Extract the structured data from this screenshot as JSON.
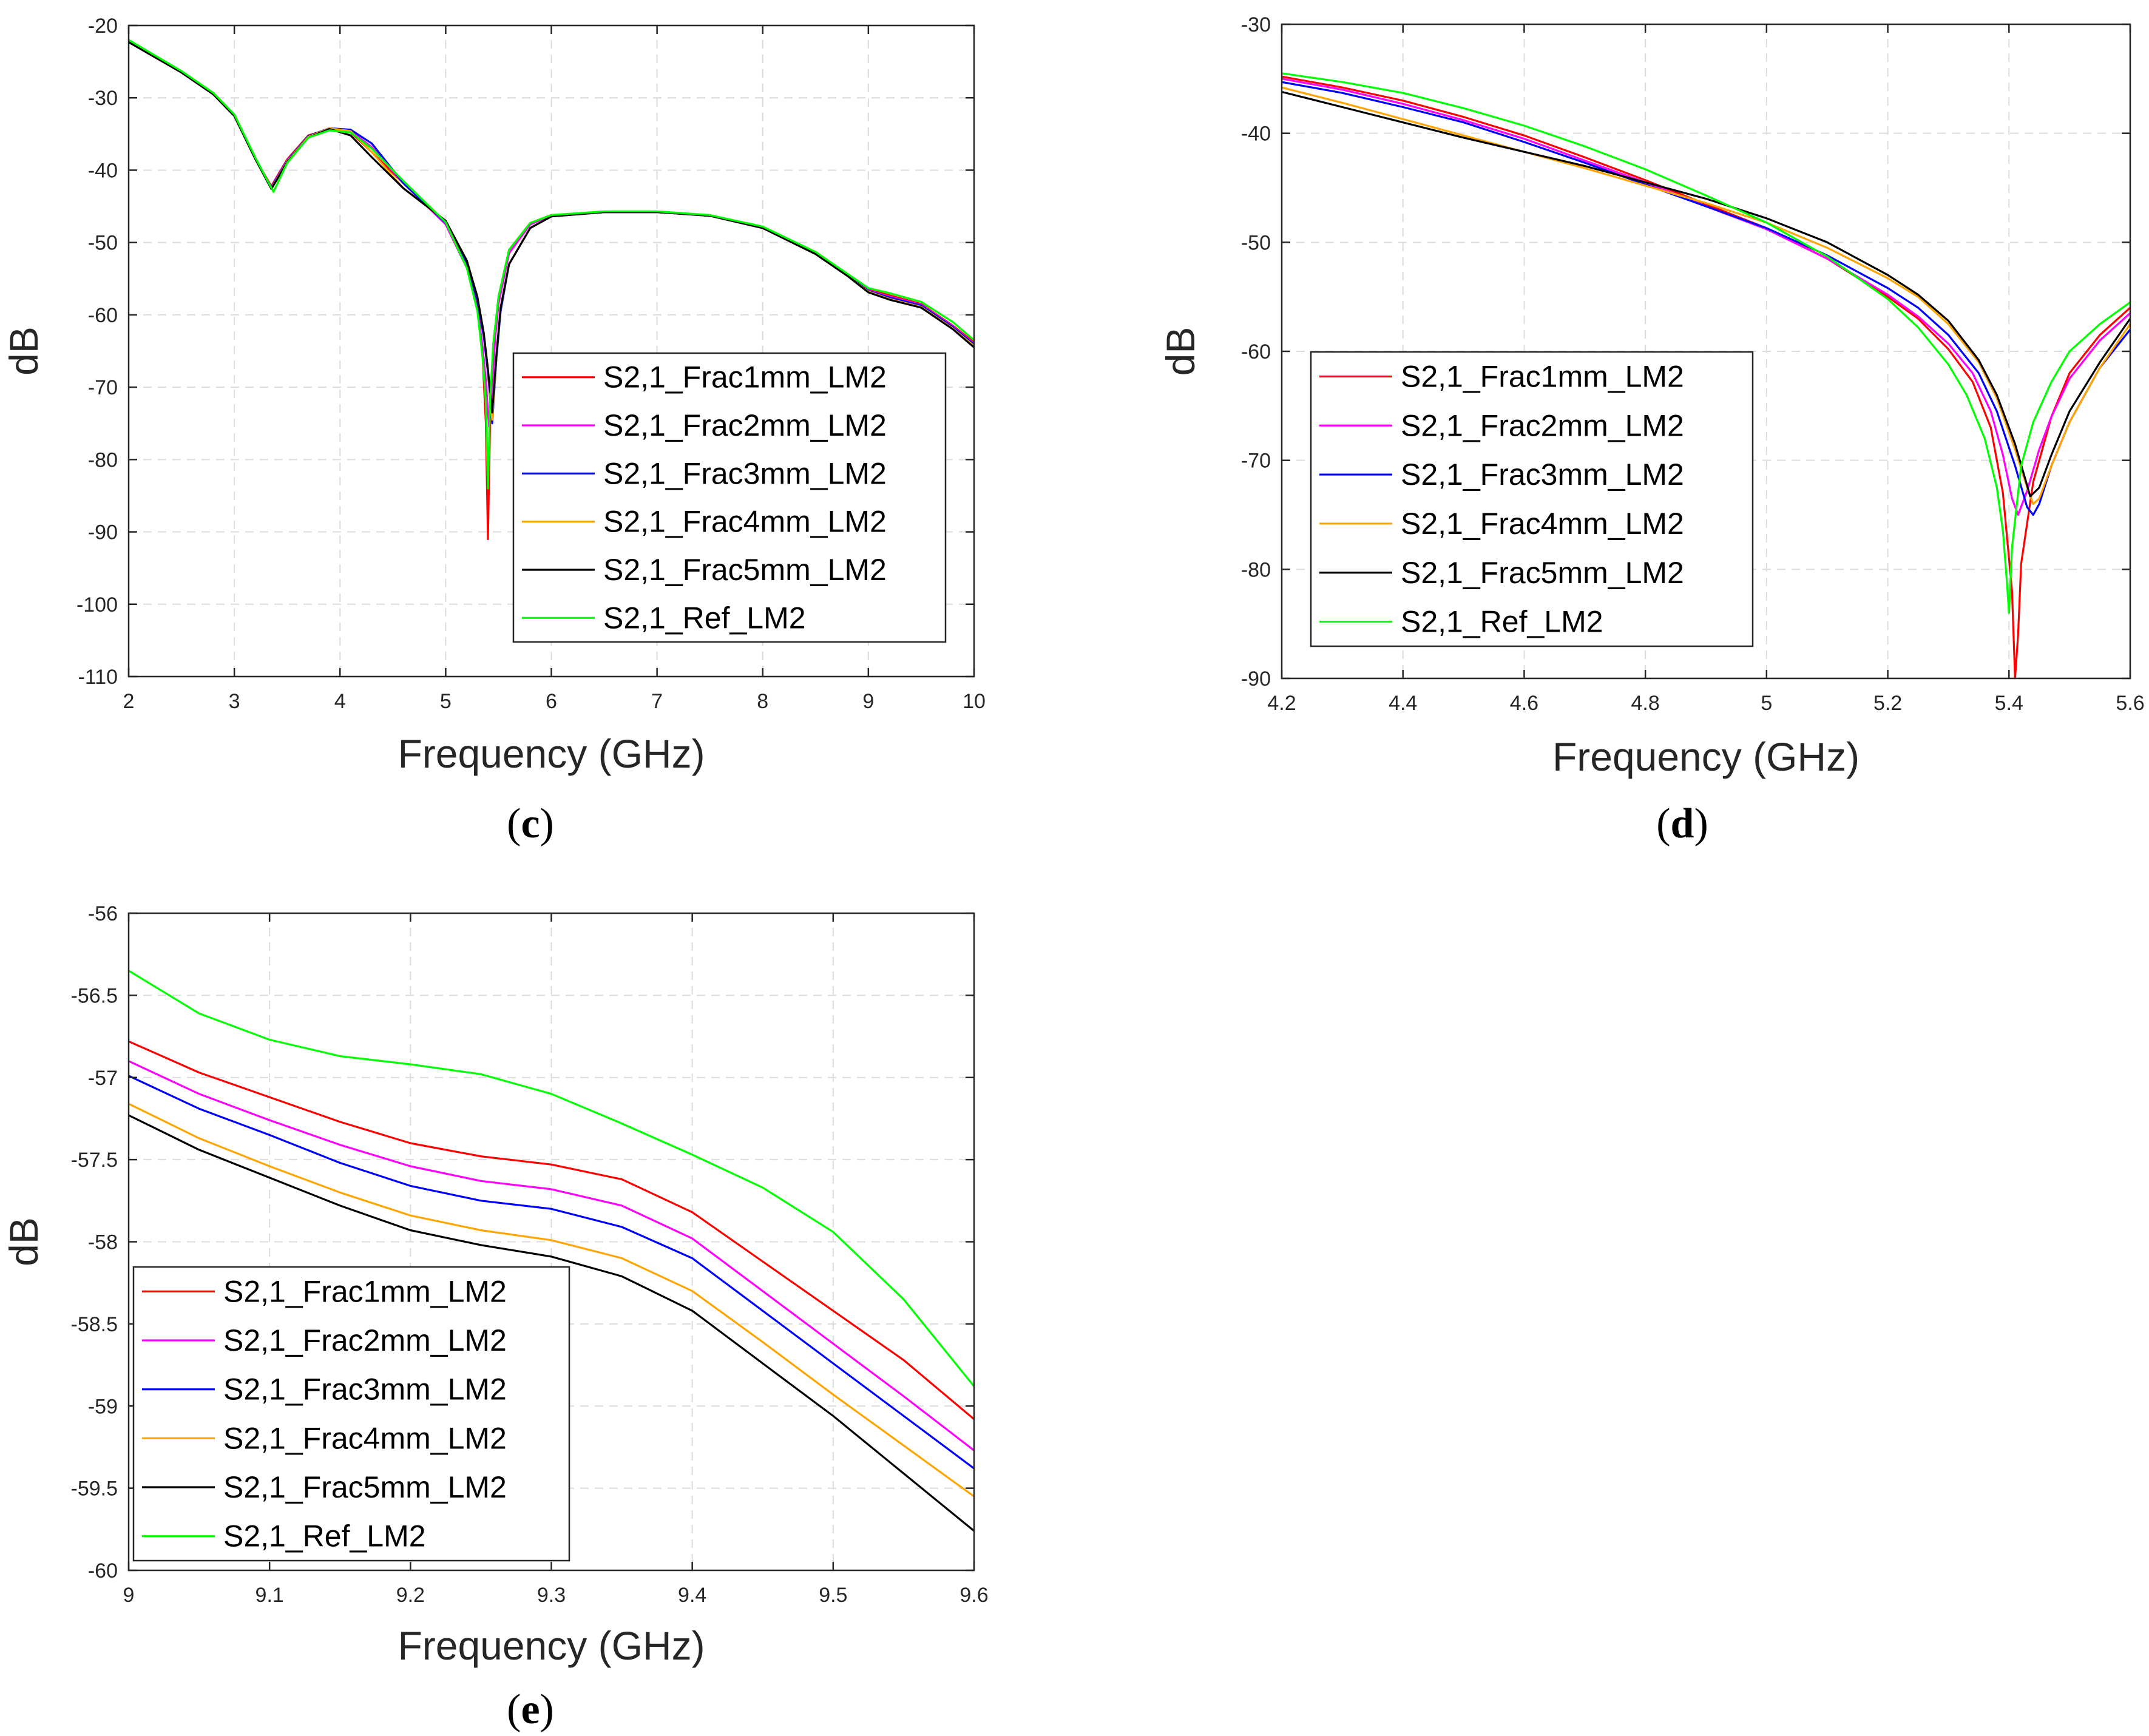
{
  "chart_data": [
    {
      "type": "line",
      "caption": "c",
      "xlabel": "Frequency (GHz)",
      "ylabel": "dB",
      "xlim": [
        2,
        10
      ],
      "ylim": [
        -110,
        -20
      ],
      "xticks": [
        2,
        3,
        4,
        5,
        6,
        7,
        8,
        9,
        10
      ],
      "yticks": [
        -110,
        -100,
        -90,
        -80,
        -70,
        -60,
        -50,
        -40,
        -30,
        -20
      ],
      "grid": true,
      "legend_position": "bottom-right",
      "series": [
        {
          "name": "S2,1_Frac1mm_LM2",
          "color": "#ff0000",
          "x": [
            2,
            2.5,
            2.8,
            3.0,
            3.2,
            3.35,
            3.5,
            3.7,
            3.9,
            4.1,
            4.3,
            4.6,
            5.0,
            5.2,
            5.3,
            5.35,
            5.38,
            5.4,
            5.42,
            5.45,
            5.5,
            5.6,
            5.8,
            6.0,
            6.5,
            7.0,
            7.5,
            8.0,
            8.5,
            8.8,
            9.0,
            9.2,
            9.5,
            9.8,
            10.0
          ],
          "y": [
            -22.3,
            -26.5,
            -29.5,
            -32.5,
            -38.5,
            -42.2,
            -38.5,
            -35.2,
            -34.3,
            -34.8,
            -37.5,
            -41.8,
            -47.5,
            -53.5,
            -59,
            -66,
            -75,
            -91,
            -75,
            -65,
            -57.5,
            -51,
            -47.3,
            -46.2,
            -45.8,
            -45.8,
            -46.3,
            -48,
            -51.5,
            -54.5,
            -56.5,
            -57.3,
            -58.5,
            -61.5,
            -63.8
          ]
        },
        {
          "name": "S2,1_Frac2mm_LM2",
          "color": "#ff00ff",
          "x": [
            2,
            2.5,
            2.8,
            3.0,
            3.2,
            3.35,
            3.5,
            3.7,
            3.9,
            4.1,
            4.3,
            4.6,
            5.0,
            5.2,
            5.3,
            5.35,
            5.38,
            5.41,
            5.44,
            5.47,
            5.5,
            5.6,
            5.8,
            6.0,
            6.5,
            7.0,
            7.5,
            8.0,
            8.5,
            8.8,
            9.0,
            9.2,
            9.5,
            9.8,
            10.0
          ],
          "y": [
            -22.3,
            -26.5,
            -29.5,
            -32.5,
            -38.5,
            -42.3,
            -38.6,
            -35.3,
            -34.3,
            -34.6,
            -36.8,
            -41.8,
            -47.5,
            -53.5,
            -59,
            -64.5,
            -69,
            -75.5,
            -70,
            -63,
            -58.5,
            -51.5,
            -47.5,
            -46.3,
            -45.8,
            -45.8,
            -46.3,
            -48,
            -51.5,
            -54.5,
            -56.6,
            -57.5,
            -58.6,
            -61.6,
            -64.0
          ]
        },
        {
          "name": "S2,1_Frac3mm_LM2",
          "color": "#0000ff",
          "x": [
            2,
            2.5,
            2.8,
            3.0,
            3.2,
            3.35,
            3.5,
            3.7,
            3.9,
            4.1,
            4.3,
            4.6,
            5.0,
            5.2,
            5.3,
            5.36,
            5.4,
            5.44,
            5.48,
            5.52,
            5.6,
            5.8,
            6.0,
            6.5,
            7.0,
            7.5,
            8.0,
            8.5,
            8.8,
            9.0,
            9.2,
            9.5,
            9.8,
            10.0
          ],
          "y": [
            -22.3,
            -26.5,
            -29.5,
            -32.5,
            -38.5,
            -42.4,
            -38.7,
            -35.3,
            -34.2,
            -34.4,
            -36.3,
            -41.8,
            -47.3,
            -52.8,
            -58,
            -63,
            -68,
            -75,
            -66,
            -59.5,
            -53,
            -48,
            -46.4,
            -45.8,
            -45.8,
            -46.3,
            -48,
            -51.5,
            -54.5,
            -56.7,
            -57.6,
            -58.7,
            -61.7,
            -64.1
          ]
        },
        {
          "name": "S2,1_Frac4mm_LM2",
          "color": "#ffa500",
          "x": [
            2,
            2.5,
            2.8,
            3.0,
            3.2,
            3.35,
            3.5,
            3.7,
            3.9,
            4.1,
            4.3,
            4.6,
            5.0,
            5.2,
            5.3,
            5.36,
            5.4,
            5.44,
            5.48,
            5.52,
            5.6,
            5.8,
            6.0,
            6.5,
            7.0,
            7.5,
            8.0,
            8.5,
            8.8,
            9.0,
            9.2,
            9.5,
            9.8,
            10.0
          ],
          "y": [
            -22.3,
            -26.5,
            -29.5,
            -32.5,
            -38.5,
            -42.5,
            -38.8,
            -35.4,
            -34.2,
            -34.6,
            -37.5,
            -42.5,
            -47.0,
            -52.5,
            -57.5,
            -62.5,
            -67.5,
            -74.5,
            -65.5,
            -59,
            -53,
            -48,
            -46.4,
            -45.8,
            -45.8,
            -46.3,
            -48,
            -51.6,
            -54.6,
            -56.8,
            -57.8,
            -58.9,
            -61.9,
            -64.3
          ]
        },
        {
          "name": "S2,1_Frac5mm_LM2",
          "color": "#000000",
          "x": [
            2,
            2.5,
            2.8,
            3.0,
            3.2,
            3.35,
            3.5,
            3.7,
            3.9,
            4.1,
            4.3,
            4.6,
            5.0,
            5.2,
            5.3,
            5.36,
            5.4,
            5.44,
            5.48,
            5.52,
            5.6,
            5.8,
            6.0,
            6.5,
            7.0,
            7.5,
            8.0,
            8.5,
            8.8,
            9.0,
            9.2,
            9.5,
            9.8,
            10.0
          ],
          "y": [
            -22.3,
            -26.5,
            -29.5,
            -32.5,
            -38.5,
            -42.6,
            -38.9,
            -35.5,
            -34.3,
            -35.2,
            -38.2,
            -42.5,
            -47.0,
            -52.5,
            -57.5,
            -62.5,
            -67.5,
            -73.5,
            -65.5,
            -59,
            -53,
            -48,
            -46.4,
            -45.8,
            -45.8,
            -46.3,
            -48,
            -51.6,
            -54.6,
            -56.9,
            -57.9,
            -59.0,
            -62.0,
            -64.5
          ]
        },
        {
          "name": "S2,1_Ref_LM2",
          "color": "#00ff00",
          "x": [
            2,
            2.5,
            2.8,
            3.0,
            3.2,
            3.37,
            3.5,
            3.7,
            3.9,
            4.1,
            4.3,
            4.6,
            5.0,
            5.2,
            5.3,
            5.35,
            5.38,
            5.4,
            5.42,
            5.45,
            5.5,
            5.6,
            5.8,
            6.0,
            6.5,
            7.0,
            7.5,
            8.0,
            8.5,
            8.8,
            9.0,
            9.2,
            9.5,
            9.8,
            10.0
          ],
          "y": [
            -22.0,
            -26.3,
            -29.3,
            -32.3,
            -38.3,
            -43.0,
            -39.0,
            -35.5,
            -34.5,
            -34.8,
            -37.0,
            -41.5,
            -47.2,
            -53.5,
            -59.5,
            -66,
            -72,
            -84,
            -72,
            -64,
            -57.5,
            -51,
            -47.3,
            -46.2,
            -45.7,
            -45.7,
            -46.2,
            -47.8,
            -51.3,
            -54.3,
            -56.3,
            -57.0,
            -58.2,
            -61.0,
            -63.5
          ]
        }
      ]
    },
    {
      "type": "line",
      "caption": "d",
      "xlabel": "Frequency (GHz)",
      "ylabel": "dB",
      "xlim": [
        4.2,
        5.6
      ],
      "ylim": [
        -90,
        -30
      ],
      "xticks": [
        4.2,
        4.4,
        4.6,
        4.8,
        5,
        5.2,
        5.4,
        5.6
      ],
      "yticks": [
        -90,
        -80,
        -70,
        -60,
        -50,
        -40,
        -30
      ],
      "grid": true,
      "legend_position": "bottom-left",
      "series": [
        {
          "name": "S2,1_Frac1mm_LM2",
          "color": "#ff0000",
          "x": [
            4.2,
            4.3,
            4.4,
            4.5,
            4.6,
            4.7,
            4.8,
            4.9,
            5.0,
            5.1,
            5.2,
            5.25,
            5.3,
            5.34,
            5.37,
            5.39,
            5.405,
            5.41,
            5.415,
            5.42,
            5.44,
            5.47,
            5.5,
            5.55,
            5.6
          ],
          "y": [
            -34.8,
            -35.8,
            -37.0,
            -38.5,
            -40.2,
            -42.2,
            -44.3,
            -46.5,
            -48.7,
            -51.5,
            -55.0,
            -57.0,
            -59.8,
            -62.8,
            -67.0,
            -73.0,
            -82.0,
            -90.0,
            -86.0,
            -79.5,
            -72.0,
            -66.0,
            -62.0,
            -58.5,
            -56.0
          ]
        },
        {
          "name": "S2,1_Frac2mm_LM2",
          "color": "#ff00ff",
          "x": [
            4.2,
            4.3,
            4.4,
            4.5,
            4.6,
            4.7,
            4.8,
            4.9,
            5.0,
            5.1,
            5.2,
            5.25,
            5.3,
            5.34,
            5.37,
            5.39,
            5.405,
            5.415,
            5.43,
            5.45,
            5.47,
            5.5,
            5.55,
            5.6
          ],
          "y": [
            -35.0,
            -36.0,
            -37.3,
            -38.8,
            -40.5,
            -42.5,
            -44.5,
            -46.7,
            -48.8,
            -51.5,
            -54.8,
            -56.8,
            -59.3,
            -62.0,
            -65.5,
            -69.5,
            -73.5,
            -75.0,
            -72.8,
            -69.0,
            -66.0,
            -62.5,
            -59.0,
            -56.5
          ]
        },
        {
          "name": "S2,1_Frac3mm_LM2",
          "color": "#0000ff",
          "x": [
            4.2,
            4.3,
            4.4,
            4.5,
            4.6,
            4.7,
            4.8,
            4.9,
            5.0,
            5.1,
            5.2,
            5.25,
            5.3,
            5.35,
            5.38,
            5.41,
            5.43,
            5.44,
            5.45,
            5.47,
            5.5,
            5.55,
            5.6
          ],
          "y": [
            -35.3,
            -36.3,
            -37.6,
            -39.0,
            -40.8,
            -42.7,
            -44.7,
            -46.7,
            -48.7,
            -51.2,
            -54.2,
            -56.0,
            -58.5,
            -62.0,
            -65.5,
            -70.5,
            -74.3,
            -75.0,
            -74.0,
            -70.5,
            -66.5,
            -61.5,
            -58.0
          ]
        },
        {
          "name": "S2,1_Frac4mm_LM2",
          "color": "#ffa500",
          "x": [
            4.2,
            4.3,
            4.4,
            4.5,
            4.6,
            4.7,
            4.8,
            4.9,
            5.0,
            5.1,
            5.2,
            5.25,
            5.3,
            5.35,
            5.38,
            5.41,
            5.43,
            5.44,
            5.45,
            5.47,
            5.5,
            5.55,
            5.6
          ],
          "y": [
            -35.8,
            -37.2,
            -38.7,
            -40.2,
            -41.7,
            -43.2,
            -44.8,
            -46.4,
            -48.2,
            -50.5,
            -53.3,
            -55.0,
            -57.5,
            -61.0,
            -64.3,
            -69.0,
            -72.5,
            -74.0,
            -73.5,
            -70.5,
            -66.5,
            -61.5,
            -57.5
          ]
        },
        {
          "name": "S2,1_Frac5mm_LM2",
          "color": "#000000",
          "x": [
            4.2,
            4.3,
            4.4,
            4.5,
            4.6,
            4.7,
            4.8,
            4.9,
            5.0,
            5.1,
            5.2,
            5.25,
            5.3,
            5.35,
            5.38,
            5.41,
            5.43,
            5.435,
            5.45,
            5.47,
            5.5,
            5.55,
            5.6
          ],
          "y": [
            -36.2,
            -37.6,
            -39.0,
            -40.4,
            -41.7,
            -43.0,
            -44.5,
            -46.0,
            -47.8,
            -50.0,
            -53.0,
            -54.8,
            -57.2,
            -60.8,
            -64.0,
            -68.5,
            -72.3,
            -73.3,
            -72.5,
            -69.5,
            -65.5,
            -61.0,
            -57.0
          ]
        },
        {
          "name": "S2,1_Ref_LM2",
          "color": "#00ff00",
          "x": [
            4.2,
            4.3,
            4.4,
            4.5,
            4.6,
            4.7,
            4.8,
            4.9,
            5.0,
            5.1,
            5.2,
            5.25,
            5.3,
            5.33,
            5.36,
            5.38,
            5.39,
            5.397,
            5.4,
            5.405,
            5.42,
            5.44,
            5.47,
            5.5,
            5.55,
            5.6
          ],
          "y": [
            -34.5,
            -35.3,
            -36.3,
            -37.7,
            -39.3,
            -41.2,
            -43.3,
            -45.7,
            -48.2,
            -51.3,
            -55.2,
            -57.8,
            -61.2,
            -64.0,
            -68.0,
            -72.5,
            -76.5,
            -81.5,
            -84.0,
            -78.0,
            -70.5,
            -66.5,
            -62.8,
            -60.0,
            -57.5,
            -55.5
          ]
        }
      ]
    },
    {
      "type": "line",
      "caption": "e",
      "xlabel": "Frequency (GHz)",
      "ylabel": "dB",
      "xlim": [
        9,
        9.6
      ],
      "ylim": [
        -60,
        -56
      ],
      "xticks": [
        9,
        9.1,
        9.2,
        9.3,
        9.4,
        9.5,
        9.6
      ],
      "yticks": [
        -60,
        -59.5,
        -59,
        -58.5,
        -58,
        -57.5,
        -57,
        -56.5,
        -56
      ],
      "grid": true,
      "legend_position": "bottom-left",
      "series": [
        {
          "name": "S2,1_Frac1mm_LM2",
          "color": "#ff0000",
          "x": [
            9.0,
            9.05,
            9.1,
            9.15,
            9.2,
            9.25,
            9.3,
            9.35,
            9.4,
            9.45,
            9.5,
            9.55,
            9.6
          ],
          "y": [
            -56.78,
            -56.97,
            -57.12,
            -57.27,
            -57.4,
            -57.48,
            -57.53,
            -57.62,
            -57.82,
            -58.12,
            -58.42,
            -58.72,
            -59.08
          ]
        },
        {
          "name": "S2,1_Frac2mm_LM2",
          "color": "#ff00ff",
          "x": [
            9.0,
            9.05,
            9.1,
            9.15,
            9.2,
            9.25,
            9.3,
            9.35,
            9.4,
            9.45,
            9.5,
            9.55,
            9.6
          ],
          "y": [
            -56.9,
            -57.1,
            -57.26,
            -57.41,
            -57.54,
            -57.63,
            -57.68,
            -57.78,
            -57.98,
            -58.3,
            -58.62,
            -58.94,
            -59.27
          ]
        },
        {
          "name": "S2,1_Frac3mm_LM2",
          "color": "#0000ff",
          "x": [
            9.0,
            9.05,
            9.1,
            9.15,
            9.2,
            9.25,
            9.3,
            9.35,
            9.4,
            9.45,
            9.5,
            9.55,
            9.6
          ],
          "y": [
            -56.99,
            -57.19,
            -57.35,
            -57.52,
            -57.66,
            -57.75,
            -57.8,
            -57.91,
            -58.1,
            -58.42,
            -58.74,
            -59.06,
            -59.38
          ]
        },
        {
          "name": "S2,1_Frac4mm_LM2",
          "color": "#ffa500",
          "x": [
            9.0,
            9.05,
            9.1,
            9.15,
            9.2,
            9.25,
            9.3,
            9.35,
            9.4,
            9.45,
            9.5,
            9.55,
            9.6
          ],
          "y": [
            -57.16,
            -57.37,
            -57.54,
            -57.7,
            -57.84,
            -57.93,
            -57.99,
            -58.1,
            -58.3,
            -58.61,
            -58.93,
            -59.24,
            -59.55
          ]
        },
        {
          "name": "S2,1_Frac5mm_LM2",
          "color": "#000000",
          "x": [
            9.0,
            9.05,
            9.1,
            9.15,
            9.2,
            9.25,
            9.3,
            9.35,
            9.4,
            9.45,
            9.5,
            9.55,
            9.6
          ],
          "y": [
            -57.23,
            -57.44,
            -57.61,
            -57.78,
            -57.93,
            -58.02,
            -58.09,
            -58.21,
            -58.42,
            -58.74,
            -59.06,
            -59.41,
            -59.76
          ]
        },
        {
          "name": "S2,1_Ref_LM2",
          "color": "#00ff00",
          "x": [
            9.0,
            9.05,
            9.1,
            9.15,
            9.2,
            9.25,
            9.3,
            9.35,
            9.4,
            9.45,
            9.5,
            9.55,
            9.6
          ],
          "y": [
            -56.35,
            -56.61,
            -56.77,
            -56.87,
            -56.92,
            -56.98,
            -57.1,
            -57.28,
            -57.47,
            -57.67,
            -57.94,
            -58.35,
            -58.88
          ]
        }
      ]
    }
  ]
}
